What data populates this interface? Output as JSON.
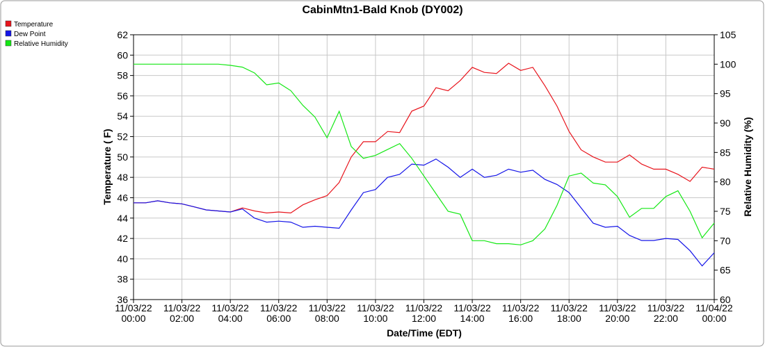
{
  "chart_data": {
    "type": "line",
    "title": "CabinMtn1-Bald Knob (DY002)",
    "x_label": "Date/Time (EDT)",
    "y_label": "Temperature ( F)",
    "y2_label": "Relative Humidity (%)",
    "x": [
      "11/03/22 00:00",
      "11/03/22 00:30",
      "11/03/22 01:00",
      "11/03/22 01:30",
      "11/03/22 02:00",
      "11/03/22 02:30",
      "11/03/22 03:00",
      "11/03/22 03:30",
      "11/03/22 04:00",
      "11/03/22 04:30",
      "11/03/22 05:00",
      "11/03/22 05:30",
      "11/03/22 06:00",
      "11/03/22 06:30",
      "11/03/22 07:00",
      "11/03/22 07:30",
      "11/03/22 08:00",
      "11/03/22 08:30",
      "11/03/22 09:00",
      "11/03/22 09:30",
      "11/03/22 10:00",
      "11/03/22 10:30",
      "11/03/22 11:00",
      "11/03/22 11:30",
      "11/03/22 12:00",
      "11/03/22 12:30",
      "11/03/22 13:00",
      "11/03/22 13:30",
      "11/03/22 14:00",
      "11/03/22 14:30",
      "11/03/22 15:00",
      "11/03/22 15:30",
      "11/03/22 16:00",
      "11/03/22 16:30",
      "11/03/22 17:00",
      "11/03/22 17:30",
      "11/03/22 18:00",
      "11/03/22 18:30",
      "11/03/22 19:00",
      "11/03/22 19:30",
      "11/03/22 20:00",
      "11/03/22 20:30",
      "11/03/22 21:00",
      "11/03/22 21:30",
      "11/03/22 22:00",
      "11/03/22 22:30",
      "11/03/22 23:00",
      "11/03/22 23:30",
      "11/04/22 00:00"
    ],
    "series": [
      {
        "name": "Temperature",
        "color": "#e8141c",
        "values": [
          45.5,
          45.5,
          45.7,
          45.5,
          45.4,
          45.1,
          44.8,
          44.7,
          44.6,
          45.0,
          44.7,
          44.5,
          44.6,
          44.5,
          45.3,
          45.8,
          46.2,
          47.5,
          50.0,
          51.5,
          51.5,
          52.5,
          52.4,
          54.5,
          55.0,
          56.8,
          56.5,
          57.5,
          58.8,
          58.3,
          58.2,
          59.2,
          58.5,
          58.8,
          57.0,
          55.0,
          52.5,
          50.7,
          50.0,
          49.5,
          49.5,
          50.2,
          49.3,
          48.8,
          48.8,
          48.3,
          47.6,
          49.0,
          48.8
        ]
      },
      {
        "name": "Dew Point",
        "color": "#1414e8",
        "values": [
          45.5,
          45.5,
          45.7,
          45.5,
          45.4,
          45.1,
          44.8,
          44.7,
          44.6,
          44.9,
          44.0,
          43.6,
          43.7,
          43.6,
          43.1,
          43.2,
          43.1,
          43.0,
          44.8,
          46.5,
          46.8,
          48.0,
          48.3,
          49.3,
          49.2,
          49.8,
          49.0,
          48.0,
          48.8,
          48.0,
          48.2,
          48.8,
          48.5,
          48.7,
          47.8,
          47.3,
          46.5,
          45.0,
          43.5,
          43.1,
          43.2,
          42.3,
          41.8,
          41.8,
          42.0,
          41.9,
          40.8,
          39.3,
          40.6
        ]
      },
      {
        "name": "Relative Humidity",
        "color": "#14e814",
        "axis": "y2",
        "values": [
          100,
          100,
          100,
          100,
          100,
          100,
          100,
          100,
          99.8,
          99.5,
          98.5,
          96.5,
          96.8,
          95.5,
          93,
          91,
          87.5,
          92,
          86,
          84,
          84.5,
          85.5,
          86.5,
          84,
          81,
          78,
          75,
          74.5,
          70,
          70,
          69.5,
          69.5,
          69.3,
          70,
          72,
          76,
          81,
          81.5,
          79.8,
          79.5,
          77.5,
          74,
          75.5,
          75.5,
          77.5,
          78.5,
          75,
          70.5,
          73
        ]
      }
    ],
    "xlim": [
      "11/03/22 00:00",
      "11/04/22 00:00"
    ],
    "xticks": [
      "11/03/22 00:00",
      "11/03/22 02:00",
      "11/03/22 04:00",
      "11/03/22 06:00",
      "11/03/22 08:00",
      "11/03/22 10:00",
      "11/03/22 12:00",
      "11/03/22 14:00",
      "11/03/22 16:00",
      "11/03/22 18:00",
      "11/03/22 20:00",
      "11/03/22 22:00",
      "11/04/22 00:00"
    ],
    "ylim": [
      36,
      62
    ],
    "yticks": [
      36,
      38,
      40,
      42,
      44,
      46,
      48,
      50,
      52,
      54,
      56,
      58,
      60,
      62
    ],
    "y2lim": [
      60,
      105
    ],
    "y2ticks": [
      60,
      65,
      70,
      75,
      80,
      85,
      90,
      95,
      100,
      105
    ],
    "grid": true,
    "legend": "upper left"
  }
}
